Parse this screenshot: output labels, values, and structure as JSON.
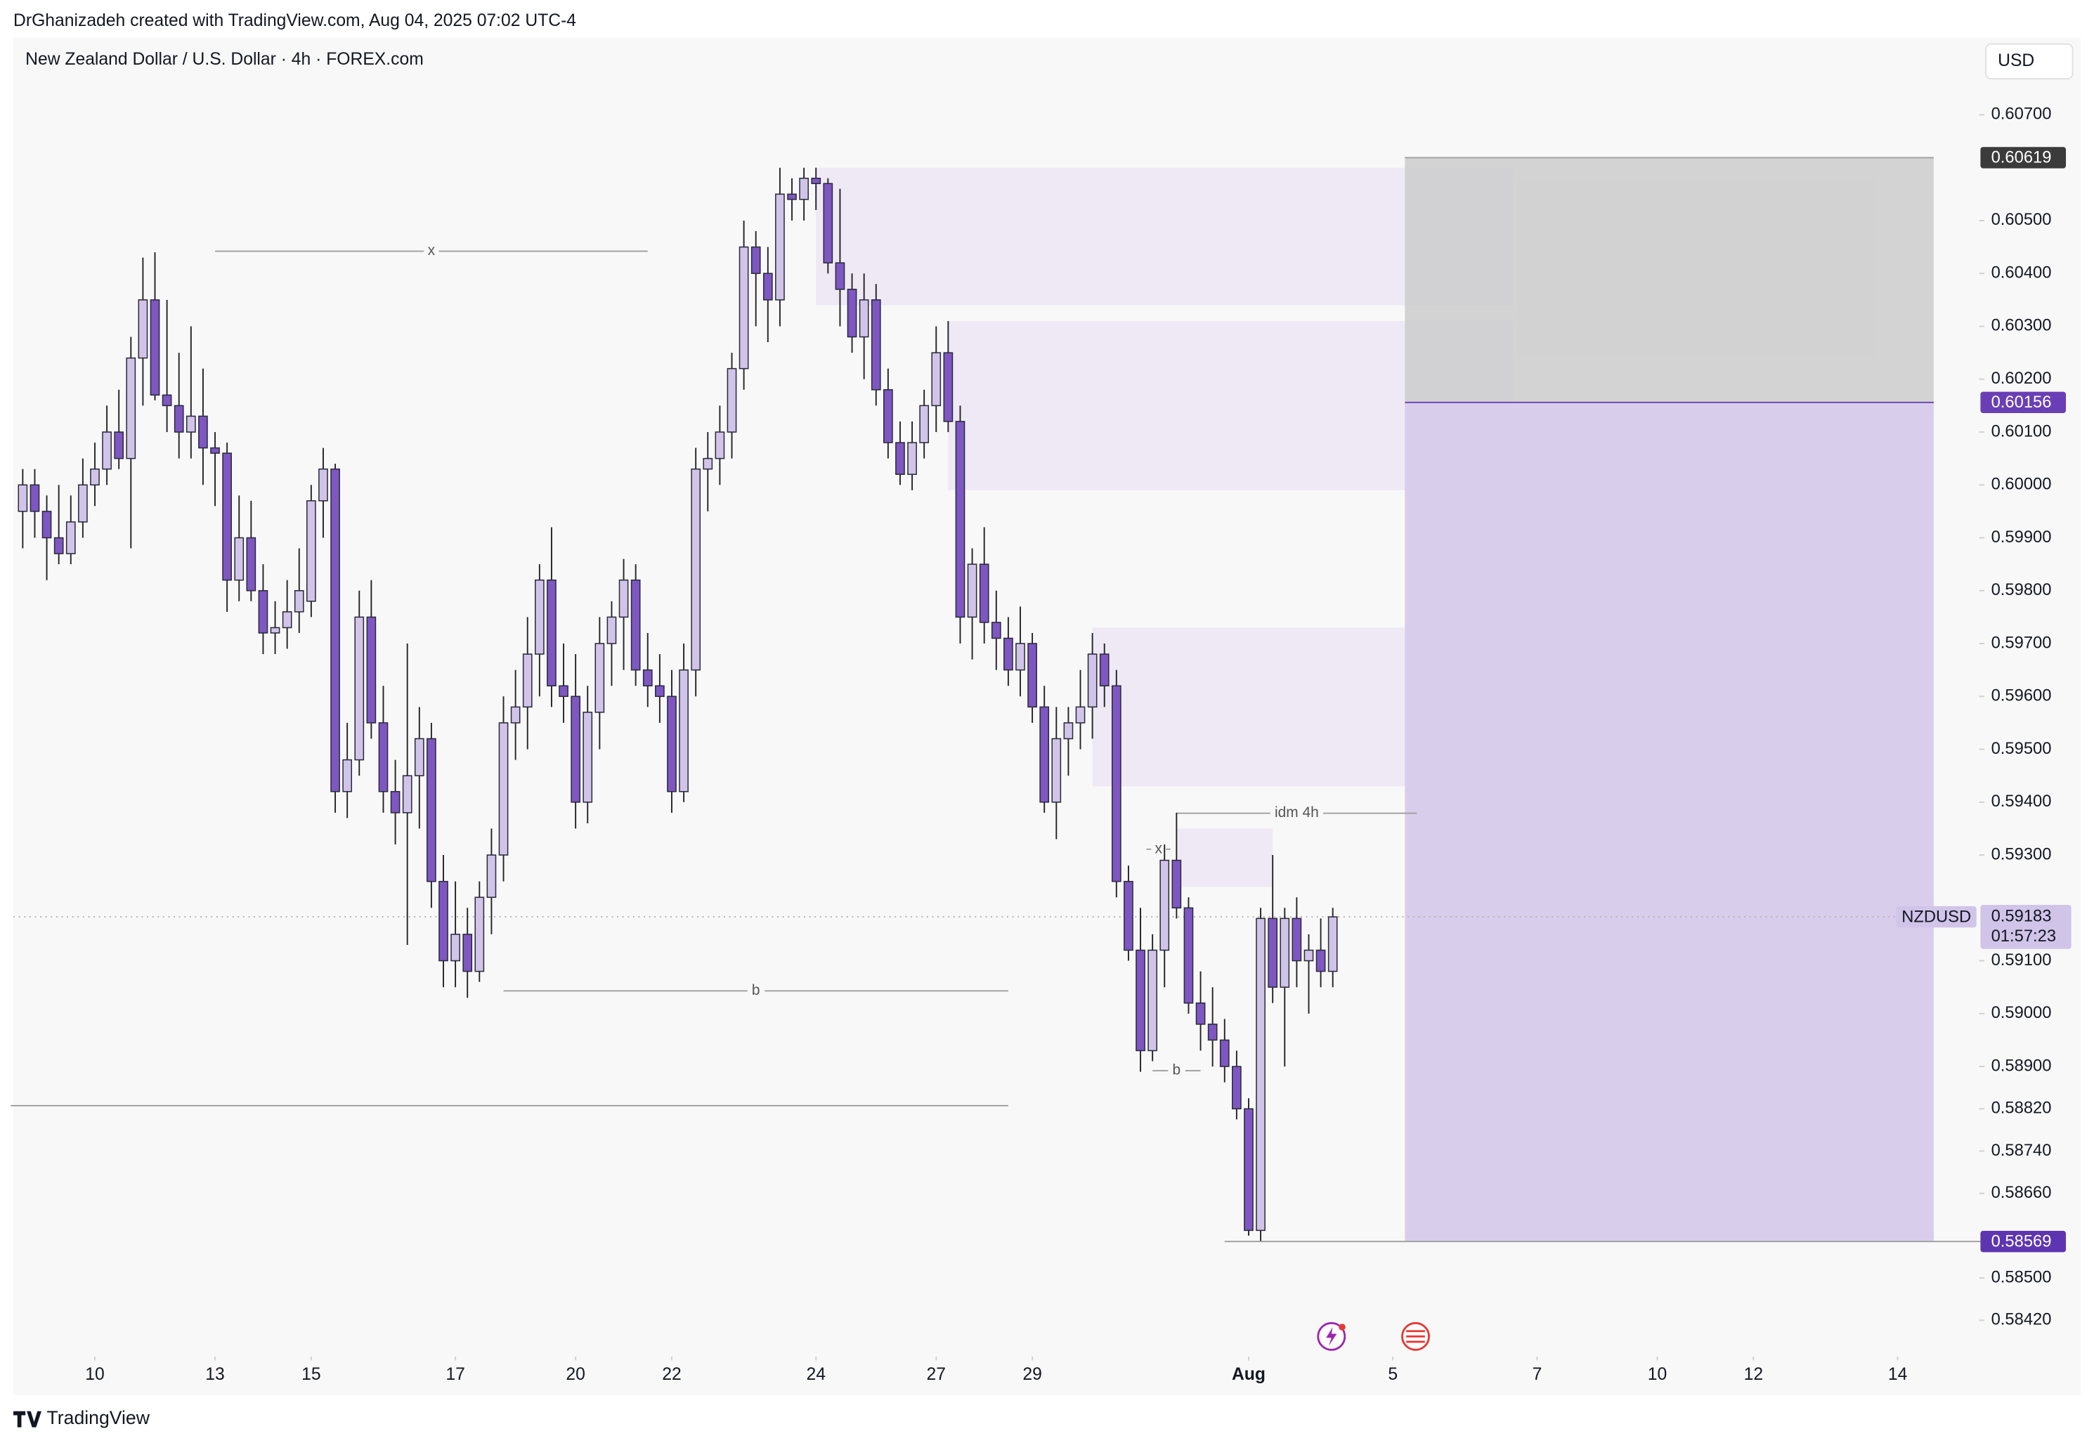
{
  "header": {
    "credit": "DrGhanizadeh created with TradingView.com, Aug 04, 2025 07:02 UTC-4",
    "logo": "TradingView"
  },
  "chart_data": {
    "type": "candlestick",
    "title": "New Zealand Dollar / U.S. Dollar · 4h · FOREX.com",
    "currency": "USD",
    "up_color": "#d1c4e9",
    "down_color": "#7e57c2",
    "wick_color": "#222222",
    "grid": false,
    "xlim": [
      -1,
      163
    ],
    "ylim": [
      0.5835,
      0.6085
    ],
    "xticks": [
      {
        "value": 6,
        "label": "10"
      },
      {
        "value": 16,
        "label": "13"
      },
      {
        "value": 24,
        "label": "15"
      },
      {
        "value": 36,
        "label": "17"
      },
      {
        "value": 46,
        "label": "20"
      },
      {
        "value": 54,
        "label": "22"
      },
      {
        "value": 66,
        "label": "24"
      },
      {
        "value": 76,
        "label": "27"
      },
      {
        "value": 84,
        "label": "29"
      },
      {
        "value": 102,
        "label": "Aug"
      },
      {
        "value": 114,
        "label": "5"
      },
      {
        "value": 126,
        "label": "7"
      },
      {
        "value": 136,
        "label": "10"
      },
      {
        "value": 144,
        "label": "12"
      },
      {
        "value": 156,
        "label": "14"
      }
    ],
    "yticks": [
      {
        "value": 0.607,
        "label": "0.60700"
      },
      {
        "value": 0.605,
        "label": "0.60500"
      },
      {
        "value": 0.604,
        "label": "0.60400"
      },
      {
        "value": 0.603,
        "label": "0.60300"
      },
      {
        "value": 0.602,
        "label": "0.60200"
      },
      {
        "value": 0.601,
        "label": "0.60100"
      },
      {
        "value": 0.6,
        "label": "0.60000"
      },
      {
        "value": 0.599,
        "label": "0.59900"
      },
      {
        "value": 0.598,
        "label": "0.59800"
      },
      {
        "value": 0.597,
        "label": "0.59700"
      },
      {
        "value": 0.596,
        "label": "0.59600"
      },
      {
        "value": 0.595,
        "label": "0.59500"
      },
      {
        "value": 0.594,
        "label": "0.59400"
      },
      {
        "value": 0.593,
        "label": "0.59300"
      },
      {
        "value": 0.591,
        "label": "0.59100"
      },
      {
        "value": 0.59,
        "label": "0.59000"
      },
      {
        "value": 0.589,
        "label": "0.58900"
      },
      {
        "value": 0.5882,
        "label": "0.58820"
      },
      {
        "value": 0.5874,
        "label": "0.58740"
      },
      {
        "value": 0.5866,
        "label": "0.58660"
      },
      {
        "value": 0.585,
        "label": "0.58500"
      },
      {
        "value": 0.5842,
        "label": "0.58420"
      }
    ],
    "candles": [
      [
        0.5995,
        0.6003,
        0.5988,
        0.6
      ],
      [
        0.6,
        0.6003,
        0.599,
        0.5995
      ],
      [
        0.5995,
        0.5998,
        0.5982,
        0.599
      ],
      [
        0.599,
        0.6,
        0.5985,
        0.5987
      ],
      [
        0.5987,
        0.5998,
        0.5985,
        0.5993
      ],
      [
        0.5993,
        0.6005,
        0.599,
        0.6
      ],
      [
        0.6,
        0.6008,
        0.5996,
        0.6003
      ],
      [
        0.6003,
        0.6015,
        0.6,
        0.601
      ],
      [
        0.601,
        0.6018,
        0.6003,
        0.6005
      ],
      [
        0.6005,
        0.6028,
        0.5988,
        0.6024
      ],
      [
        0.6024,
        0.6043,
        0.6015,
        0.6035
      ],
      [
        0.6035,
        0.6044,
        0.6016,
        0.6017
      ],
      [
        0.6017,
        0.6035,
        0.601,
        0.6015
      ],
      [
        0.6015,
        0.6025,
        0.6005,
        0.601
      ],
      [
        0.601,
        0.603,
        0.6005,
        0.6013
      ],
      [
        0.6013,
        0.6022,
        0.6,
        0.6007
      ],
      [
        0.6007,
        0.601,
        0.5996,
        0.6006
      ],
      [
        0.6006,
        0.6008,
        0.5976,
        0.5982
      ],
      [
        0.5982,
        0.5998,
        0.5978,
        0.599
      ],
      [
        0.599,
        0.5997,
        0.5978,
        0.598
      ],
      [
        0.598,
        0.5985,
        0.5968,
        0.5972
      ],
      [
        0.5972,
        0.5978,
        0.5968,
        0.5973
      ],
      [
        0.5973,
        0.5982,
        0.5969,
        0.5976
      ],
      [
        0.5976,
        0.5988,
        0.5972,
        0.598
      ],
      [
        0.5978,
        0.6,
        0.5975,
        0.5997
      ],
      [
        0.5997,
        0.6007,
        0.599,
        0.6003
      ],
      [
        0.6003,
        0.6004,
        0.5938,
        0.5942
      ],
      [
        0.5942,
        0.5955,
        0.5937,
        0.5948
      ],
      [
        0.5948,
        0.598,
        0.5945,
        0.5975
      ],
      [
        0.5975,
        0.5982,
        0.5952,
        0.5955
      ],
      [
        0.5955,
        0.5962,
        0.5938,
        0.5942
      ],
      [
        0.5942,
        0.5948,
        0.5932,
        0.5938
      ],
      [
        0.5938,
        0.597,
        0.5913,
        0.5945
      ],
      [
        0.5945,
        0.5958,
        0.5935,
        0.5952
      ],
      [
        0.5952,
        0.5955,
        0.592,
        0.5925
      ],
      [
        0.5925,
        0.593,
        0.5905,
        0.591
      ],
      [
        0.591,
        0.5925,
        0.5905,
        0.5915
      ],
      [
        0.5915,
        0.592,
        0.5903,
        0.5908
      ],
      [
        0.5908,
        0.5925,
        0.5906,
        0.5922
      ],
      [
        0.5922,
        0.5935,
        0.5915,
        0.593
      ],
      [
        0.593,
        0.596,
        0.5925,
        0.5955
      ],
      [
        0.5955,
        0.5965,
        0.5948,
        0.5958
      ],
      [
        0.5958,
        0.5975,
        0.595,
        0.5968
      ],
      [
        0.5968,
        0.5985,
        0.596,
        0.5982
      ],
      [
        0.5982,
        0.5992,
        0.5958,
        0.5962
      ],
      [
        0.5962,
        0.597,
        0.5955,
        0.596
      ],
      [
        0.596,
        0.5968,
        0.5935,
        0.594
      ],
      [
        0.594,
        0.5962,
        0.5936,
        0.5957
      ],
      [
        0.5957,
        0.5975,
        0.595,
        0.597
      ],
      [
        0.597,
        0.5978,
        0.5962,
        0.5975
      ],
      [
        0.5975,
        0.5986,
        0.5965,
        0.5982
      ],
      [
        0.5982,
        0.5985,
        0.5962,
        0.5965
      ],
      [
        0.5965,
        0.5972,
        0.5958,
        0.5962
      ],
      [
        0.5962,
        0.5968,
        0.5955,
        0.596
      ],
      [
        0.596,
        0.5965,
        0.5938,
        0.5942
      ],
      [
        0.5942,
        0.597,
        0.594,
        0.5965
      ],
      [
        0.5965,
        0.6007,
        0.596,
        0.6003
      ],
      [
        0.6003,
        0.601,
        0.5995,
        0.6005
      ],
      [
        0.6005,
        0.6015,
        0.6,
        0.601
      ],
      [
        0.601,
        0.6025,
        0.6005,
        0.6022
      ],
      [
        0.6022,
        0.605,
        0.6018,
        0.6045
      ],
      [
        0.6045,
        0.6048,
        0.603,
        0.604
      ],
      [
        0.604,
        0.6045,
        0.6027,
        0.6035
      ],
      [
        0.6035,
        0.606,
        0.603,
        0.6055
      ],
      [
        0.6055,
        0.6058,
        0.605,
        0.6054
      ],
      [
        0.6054,
        0.606,
        0.605,
        0.6058
      ],
      [
        0.6058,
        0.606,
        0.6052,
        0.6057
      ],
      [
        0.6057,
        0.6058,
        0.604,
        0.6042
      ],
      [
        0.6042,
        0.6056,
        0.603,
        0.6037
      ],
      [
        0.6037,
        0.604,
        0.6025,
        0.6028
      ],
      [
        0.6028,
        0.604,
        0.602,
        0.6035
      ],
      [
        0.6035,
        0.6038,
        0.6015,
        0.6018
      ],
      [
        0.6018,
        0.6022,
        0.6005,
        0.6008
      ],
      [
        0.6008,
        0.6012,
        0.6,
        0.6002
      ],
      [
        0.6002,
        0.6012,
        0.5999,
        0.6008
      ],
      [
        0.6008,
        0.6018,
        0.6005,
        0.6015
      ],
      [
        0.6015,
        0.603,
        0.601,
        0.6025
      ],
      [
        0.6025,
        0.6031,
        0.601,
        0.6012
      ],
      [
        0.6012,
        0.6015,
        0.597,
        0.5975
      ],
      [
        0.5975,
        0.5988,
        0.5967,
        0.5985
      ],
      [
        0.5985,
        0.5992,
        0.597,
        0.5974
      ],
      [
        0.5974,
        0.598,
        0.5965,
        0.5971
      ],
      [
        0.5971,
        0.5975,
        0.5962,
        0.5965
      ],
      [
        0.5965,
        0.5977,
        0.596,
        0.597
      ],
      [
        0.597,
        0.5972,
        0.5955,
        0.5958
      ],
      [
        0.5958,
        0.5962,
        0.5938,
        0.594
      ],
      [
        0.594,
        0.5958,
        0.5933,
        0.5952
      ],
      [
        0.5952,
        0.5958,
        0.5945,
        0.5955
      ],
      [
        0.5955,
        0.5965,
        0.595,
        0.5958
      ],
      [
        0.5958,
        0.5972,
        0.5952,
        0.5968
      ],
      [
        0.5968,
        0.597,
        0.5958,
        0.5962
      ],
      [
        0.5962,
        0.5965,
        0.5922,
        0.5925
      ],
      [
        0.5925,
        0.5928,
        0.591,
        0.5912
      ],
      [
        0.5912,
        0.592,
        0.5889,
        0.5893
      ],
      [
        0.5893,
        0.5915,
        0.5891,
        0.5912
      ],
      [
        0.5912,
        0.5932,
        0.5905,
        0.5929
      ],
      [
        0.5929,
        0.5938,
        0.5918,
        0.592
      ],
      [
        0.592,
        0.5922,
        0.59,
        0.5902
      ],
      [
        0.5902,
        0.5908,
        0.5893,
        0.5898
      ],
      [
        0.5898,
        0.5905,
        0.589,
        0.5895
      ],
      [
        0.5895,
        0.5899,
        0.5887,
        0.589
      ],
      [
        0.589,
        0.5893,
        0.588,
        0.5882
      ],
      [
        0.5882,
        0.5884,
        0.5858,
        0.5859
      ],
      [
        0.5859,
        0.592,
        0.5857,
        0.5918
      ],
      [
        0.5918,
        0.593,
        0.5902,
        0.5905
      ],
      [
        0.5905,
        0.592,
        0.589,
        0.5918
      ],
      [
        0.5918,
        0.5922,
        0.5905,
        0.591
      ],
      [
        0.591,
        0.5915,
        0.59,
        0.5912
      ],
      [
        0.5912,
        0.5918,
        0.5905,
        0.5908
      ],
      [
        0.5908,
        0.592,
        0.5905,
        0.59183
      ]
    ],
    "zone_color": "#ece6f4",
    "zones": [
      {
        "x": [
          66,
          124
        ],
        "y": [
          0.606,
          0.6034
        ]
      },
      {
        "x": [
          77,
          124
        ],
        "y": [
          0.6031,
          0.5999
        ]
      },
      {
        "x": [
          89,
          127
        ],
        "y": [
          0.5973,
          0.5943
        ]
      },
      {
        "x": [
          96,
          104
        ],
        "y": [
          0.5935,
          0.5924
        ]
      }
    ],
    "position": {
      "x": [
        115,
        159
      ],
      "stop": 0.60619,
      "entry": 0.60156,
      "target": 0.58569,
      "stop_color": "#c9c9c9",
      "target_color": "#d6cbea"
    },
    "lines": [
      {
        "label": "x",
        "value": 0.60442,
        "x": [
          16,
          52
        ]
      },
      {
        "label": "b",
        "value": 0.59043,
        "x": [
          40,
          82
        ]
      },
      {
        "value": 0.58826,
        "x": [
          -1,
          82
        ]
      },
      {
        "label": "idm 4h",
        "value": 0.59379,
        "x": [
          96,
          116
        ]
      },
      {
        "label": "x",
        "value": 0.59311,
        "x": [
          93.5,
          95.5
        ]
      },
      {
        "label": "b",
        "value": 0.58892,
        "x": [
          94,
          98
        ]
      },
      {
        "value": 0.58569,
        "x": [
          100,
          163
        ]
      }
    ],
    "price_tags": [
      {
        "value": 0.60619,
        "label": "0.60619",
        "color": "#3b3b3b"
      },
      {
        "value": 0.60156,
        "label": "0.60156",
        "color": "#6a3fb5"
      },
      {
        "value": 0.58569,
        "label": "0.58569",
        "color": "#5e35b1"
      }
    ],
    "current": {
      "symbol": "NZDUSD",
      "value": 0.59183,
      "label": "0.59183",
      "countdown": "01:57:23",
      "color": "#d1c4e9"
    }
  }
}
